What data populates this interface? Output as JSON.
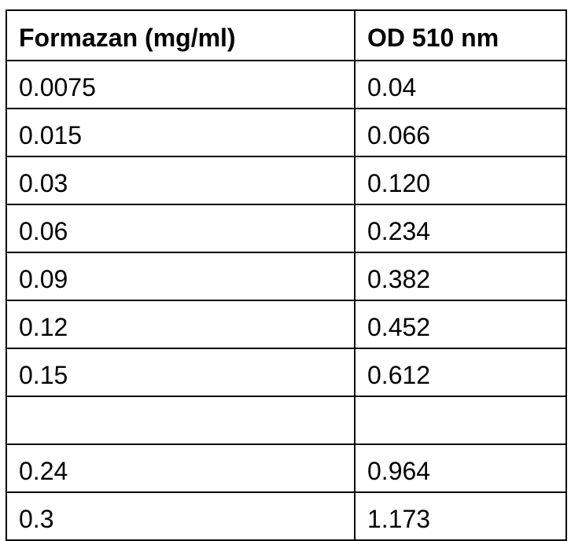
{
  "table": {
    "header": [
      "Formazan (mg/ml)",
      "OD 510 nm"
    ],
    "rows": [
      [
        "0.0075",
        "0.04"
      ],
      [
        "0.015",
        "0.066"
      ],
      [
        "0.03",
        "0.120"
      ],
      [
        "0.06",
        "0.234"
      ],
      [
        "0.09",
        "0.382"
      ],
      [
        "0.12",
        "0.452"
      ],
      [
        "0.15",
        "0.612"
      ],
      [
        null,
        null
      ],
      [
        "0.24",
        "0.964"
      ],
      [
        "0.3",
        "1.173"
      ]
    ]
  }
}
